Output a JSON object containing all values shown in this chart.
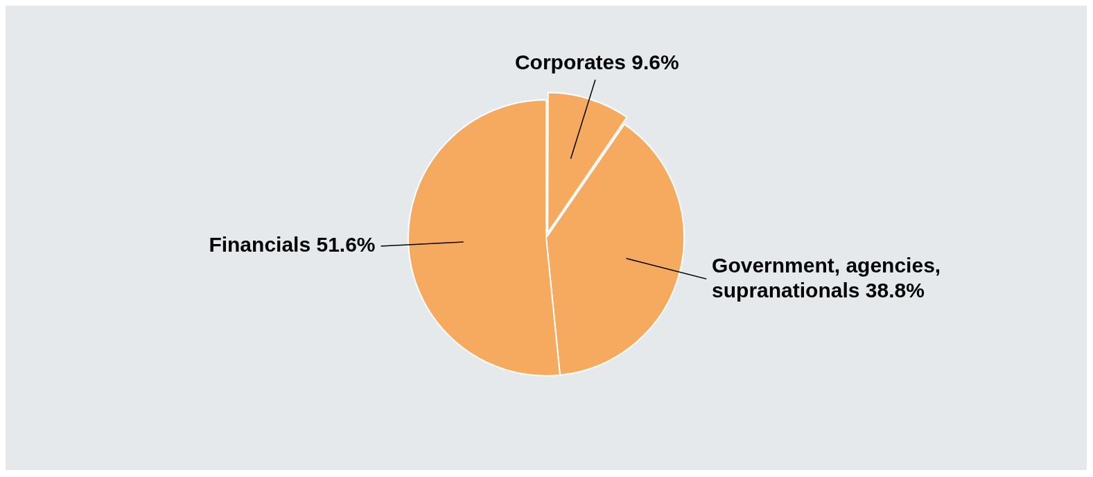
{
  "chart_data": {
    "type": "pie",
    "categories": [
      "Corporates",
      "Government, agencies, supranationals",
      "Financials"
    ],
    "values": [
      9.6,
      38.8,
      51.6
    ],
    "colors": [
      "#f5aa60",
      "#f5aa60",
      "#f5aa60"
    ],
    "value_labels": [
      "9.6%",
      "38.8%",
      "51.6%"
    ],
    "legend": false
  }
}
